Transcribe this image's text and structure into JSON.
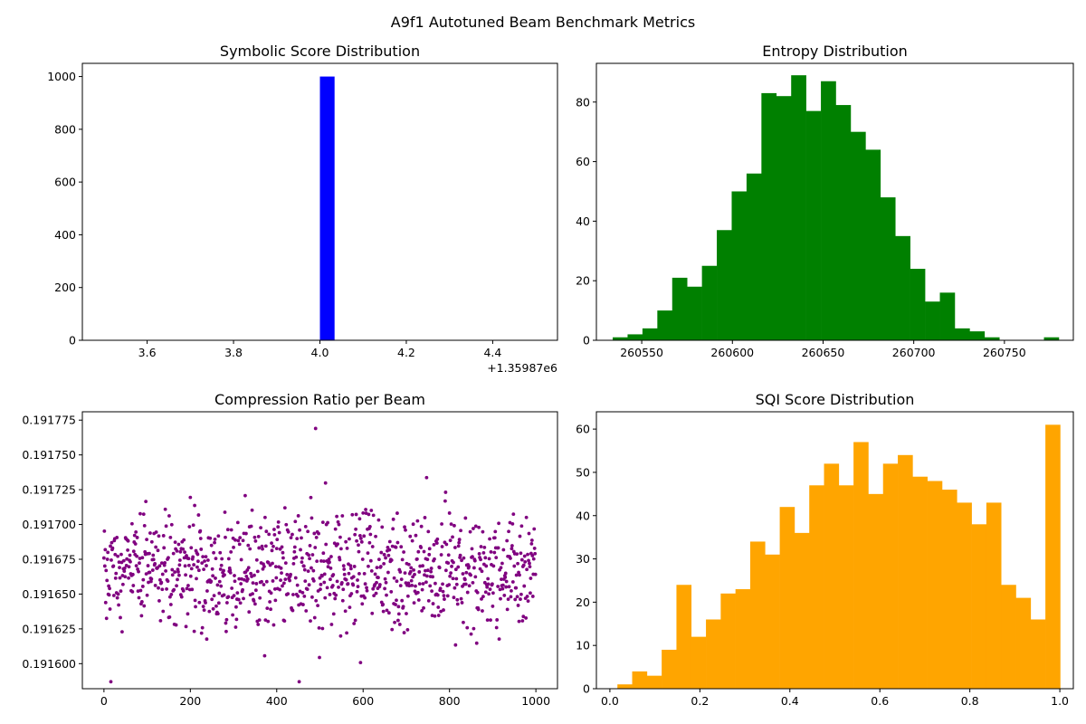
{
  "figure": {
    "suptitle": "A9f1 Autotuned Beam Benchmark Metrics"
  },
  "chart_data": [
    {
      "type": "bar",
      "title": "Symbolic Score Distribution",
      "xlabel": "",
      "ylabel": "",
      "xlim": [
        3.45,
        4.55
      ],
      "ylim": [
        0,
        1050
      ],
      "x_offset_label": "+1.35987e6",
      "xticks": [
        3.6,
        3.8,
        4.0,
        4.2,
        4.4
      ],
      "xtick_labels": [
        "3.6",
        "3.8",
        "4.0",
        "4.2",
        "4.4"
      ],
      "yticks": [
        0,
        200,
        400,
        600,
        800,
        1000
      ],
      "bin_start": 4.0,
      "bin_width": 0.0333,
      "values": [
        1000
      ],
      "color": "#0000ff"
    },
    {
      "type": "bar",
      "title": "Entropy Distribution",
      "xlabel": "",
      "ylabel": "",
      "xlim": [
        260525,
        260788
      ],
      "ylim": [
        0,
        93
      ],
      "xticks": [
        260550,
        260600,
        260650,
        260700,
        260750
      ],
      "yticks": [
        0,
        20,
        40,
        60,
        80
      ],
      "bin_start": 260534,
      "bin_width": 8.2,
      "values": [
        1,
        2,
        4,
        10,
        21,
        18,
        25,
        37,
        50,
        56,
        83,
        82,
        89,
        77,
        87,
        79,
        70,
        64,
        48,
        35,
        24,
        13,
        16,
        4,
        3,
        1,
        0,
        0,
        0,
        1
      ],
      "color": "#008000"
    },
    {
      "type": "scatter",
      "title": "Compression Ratio per Beam",
      "xlabel": "",
      "ylabel": "",
      "xlim": [
        -50,
        1050
      ],
      "ylim": [
        0.191582,
        0.191781
      ],
      "xticks": [
        0,
        200,
        400,
        600,
        800,
        1000
      ],
      "yticks": [
        0.1916,
        0.191625,
        0.19165,
        0.191675,
        0.1917,
        0.191725,
        0.19175,
        0.191775
      ],
      "ytick_labels": [
        "0.191600",
        "0.191625",
        "0.191650",
        "0.191675",
        "0.191700",
        "0.191725",
        "0.191750",
        "0.191775"
      ],
      "n_points": 1000,
      "x_range": [
        0,
        999
      ],
      "y_mean": 0.191666,
      "y_std": 2.05e-05,
      "y_min": 0.191587,
      "y_max": 0.191769,
      "color": "#800080"
    },
    {
      "type": "bar",
      "title": "SQI Score Distribution",
      "xlabel": "",
      "ylabel": "",
      "xlim": [
        -0.03,
        1.03
      ],
      "ylim": [
        0,
        64
      ],
      "xticks": [
        0.0,
        0.2,
        0.4,
        0.6,
        0.8,
        1.0
      ],
      "xtick_labels": [
        "0.0",
        "0.2",
        "0.4",
        "0.6",
        "0.8",
        "1.0"
      ],
      "yticks": [
        0,
        10,
        20,
        30,
        40,
        50,
        60
      ],
      "bin_start": 0.0167,
      "bin_width": 0.0328,
      "values": [
        1,
        4,
        3,
        9,
        24,
        12,
        16,
        22,
        23,
        34,
        31,
        42,
        36,
        47,
        52,
        47,
        57,
        45,
        52,
        54,
        49,
        48,
        46,
        43,
        38,
        43,
        24,
        21,
        16,
        61
      ],
      "color": "#ffa500"
    }
  ]
}
